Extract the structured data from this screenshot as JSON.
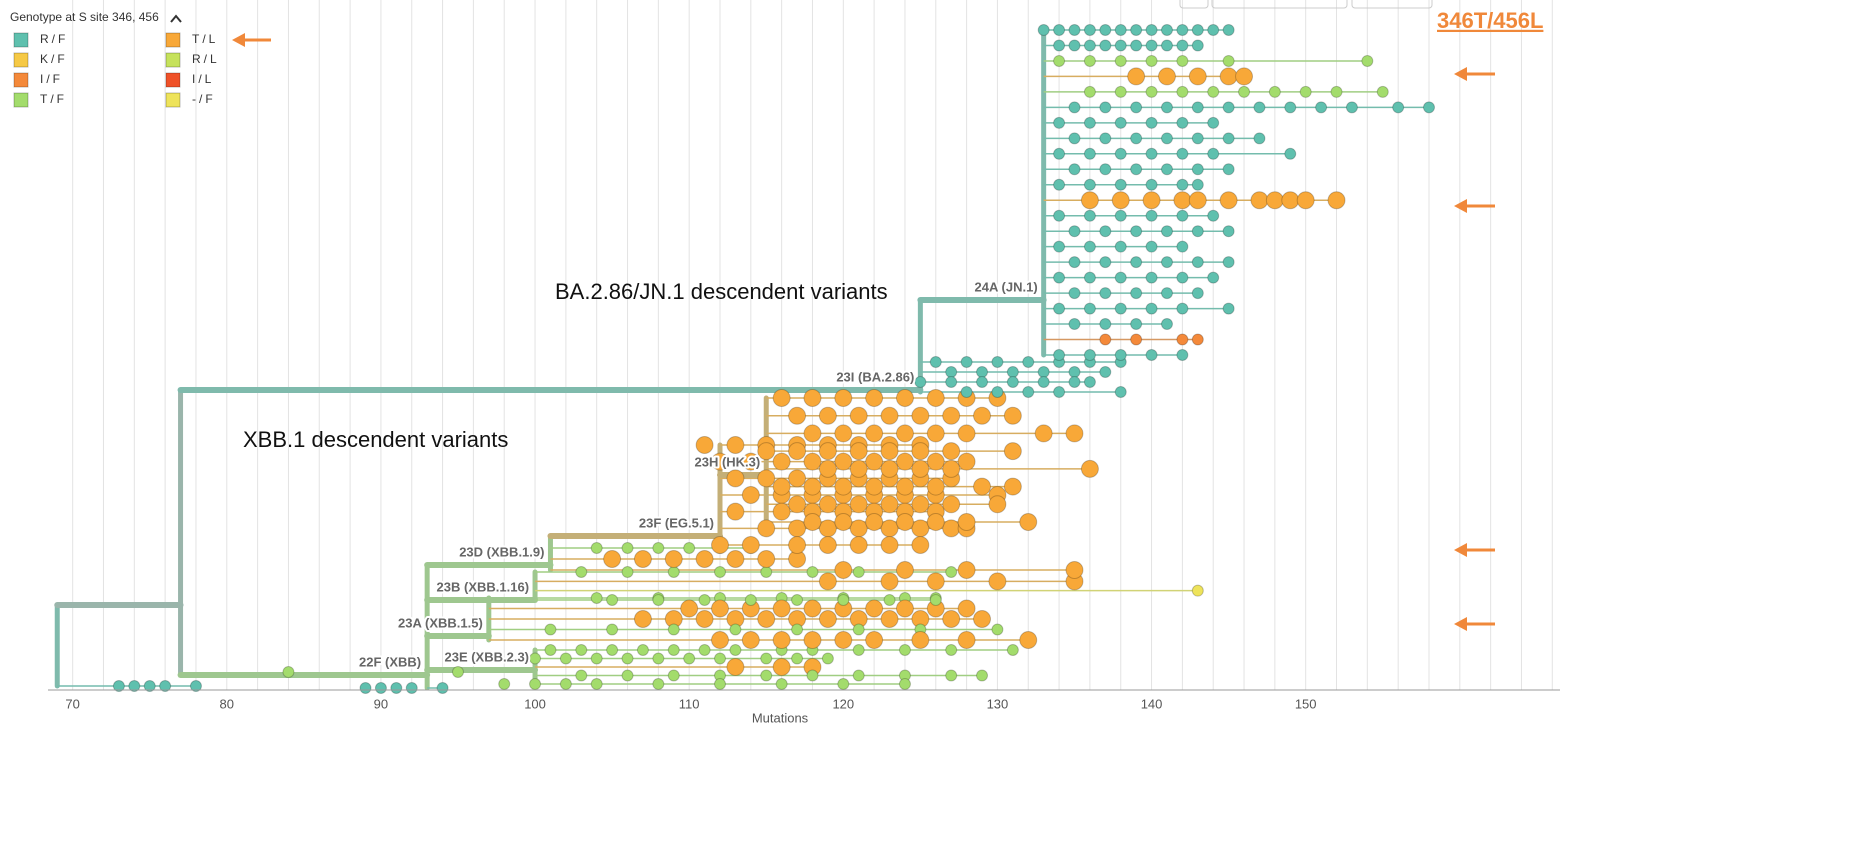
{
  "chart_data": {
    "type": "tree",
    "legend_title": "Genotype at S site 346, 456",
    "series": [
      {
        "name": "R/F",
        "color": "#5fc0ae",
        "marker_size": 5.5
      },
      {
        "name": "K/F",
        "color": "#f6c945",
        "marker_size": 5.5
      },
      {
        "name": "I/F",
        "color": "#f4893a",
        "marker_size": 5.5
      },
      {
        "name": "T/F",
        "color": "#a3dc6c",
        "marker_size": 5.5
      },
      {
        "name": "T/L",
        "color": "#f8a838",
        "marker_size": 8.5
      },
      {
        "name": "R/L",
        "color": "#c6e25b",
        "marker_size": 5.5
      },
      {
        "name": "I/L",
        "color": "#ef5128",
        "marker_size": 5.5
      },
      {
        "name": "-/F",
        "color": "#eee35a",
        "marker_size": 5.5
      }
    ],
    "highlight": "346T/456L",
    "annotations": [
      "BA.2.86/JN.1 descendent variants",
      "XBB.1 descendent variants"
    ],
    "x_label": "Mutations",
    "xlim": [
      68.4,
      166.5
    ],
    "xticks": [
      70,
      80,
      90,
      100,
      110,
      120,
      130,
      140,
      150
    ],
    "xgrid": [
      70,
      72,
      74,
      76,
      78,
      80,
      82,
      84,
      86,
      88,
      90,
      92,
      94,
      96,
      98,
      100,
      102,
      104,
      106,
      108,
      110,
      112,
      114,
      116,
      118,
      120,
      122,
      124,
      126,
      128,
      130,
      132,
      134,
      136,
      138,
      140,
      142,
      144,
      146,
      148,
      150,
      152,
      154,
      156,
      158,
      160,
      162,
      164,
      166
    ],
    "clades": [
      {
        "x": 69,
        "rows": [
          {
            "genotype": "R/F",
            "x": [
              73,
              74,
              75,
              76,
              78
            ]
          }
        ]
      },
      {
        "x": 77,
        "parent": 0,
        "rows": []
      },
      {
        "label": "22F (XBB)",
        "x": 93,
        "parent": 1,
        "rows": [
          {
            "genotype": "T/F",
            "x": [
              84,
              95
            ]
          },
          {
            "genotype": "R/F",
            "x": [
              89,
              90,
              91,
              92,
              94
            ]
          }
        ]
      },
      {
        "label": "23E (XBB.2.3)",
        "x": 100,
        "parent": 2,
        "rows": [
          {
            "genotype": "T/F",
            "x": [
              101,
              103,
              105,
              107,
              109,
              111,
              113,
              116,
              118,
              121,
              124,
              127,
              131
            ]
          },
          {
            "genotype": "T/F",
            "x": [
              100,
              102,
              104,
              106,
              108,
              110,
              112,
              115,
              117,
              119
            ]
          },
          {
            "genotype": "T/L",
            "x": [
              113,
              116,
              118
            ]
          },
          {
            "genotype": "T/F",
            "x": [
              103,
              106,
              109,
              112,
              115,
              118,
              121,
              124,
              127,
              129
            ]
          },
          {
            "genotype": "T/F",
            "x": [
              98,
              100,
              102,
              104,
              108,
              112,
              116,
              120,
              124
            ]
          }
        ]
      },
      {
        "label": "23A (XBB.1.5)",
        "x": 97,
        "parent": 2,
        "rows": [
          {
            "genotype": "T/F",
            "x": [
              104,
              108,
              112,
              116,
              120,
              124,
              126
            ]
          },
          {
            "genotype": "T/L",
            "x": [
              110,
              112,
              114,
              116,
              118,
              120,
              122,
              124,
              126,
              128
            ]
          },
          {
            "genotype": "T/L",
            "x": [
              107,
              109,
              111,
              113,
              115,
              117,
              119,
              121,
              123,
              125,
              127,
              129
            ]
          },
          {
            "genotype": "T/F",
            "x": [
              101,
              105,
              109,
              113,
              117,
              121,
              125,
              130
            ]
          },
          {
            "genotype": "T/L",
            "x": [
              112,
              114,
              116,
              118,
              120,
              122,
              125,
              128,
              132
            ]
          }
        ]
      },
      {
        "label": "23B (XBB.1.16)",
        "x": 100,
        "parent": 2,
        "rows": [
          {
            "genotype": "T/F",
            "x": [
              103,
              106,
              109,
              112,
              115,
              118,
              121,
              124,
              127
            ]
          },
          {
            "genotype": "T/L",
            "x": [
              119,
              123,
              126,
              130,
              135
            ]
          },
          {
            "genotype": "-/F",
            "x": [
              143
            ]
          },
          {
            "genotype": "T/F",
            "x": [
              105,
              108,
              111,
              114,
              117,
              120,
              123,
              126
            ]
          }
        ]
      },
      {
        "label": "23D (XBB.1.9)",
        "x": 101,
        "parent": 2,
        "rows": [
          {
            "genotype": "T/F",
            "x": [
              104,
              106,
              108,
              110,
              112,
              114
            ]
          },
          {
            "genotype": "T/L",
            "x": [
              105,
              107,
              109,
              111,
              113,
              115,
              117
            ]
          },
          {
            "genotype": "T/L",
            "x": [
              120,
              124,
              128,
              135
            ]
          }
        ]
      },
      {
        "label": "23F (EG.5.1)",
        "x": 112,
        "parent": 6,
        "rows": [
          {
            "genotype": "T/L",
            "x": [
              111,
              113,
              115,
              117,
              119,
              121,
              123,
              125
            ]
          },
          {
            "genotype": "T/L",
            "x": [
              112,
              114,
              116,
              118,
              120,
              122,
              124,
              126,
              128
            ]
          },
          {
            "genotype": "T/L",
            "x": [
              113,
              115,
              117,
              119,
              121,
              123,
              125,
              127
            ]
          },
          {
            "genotype": "T/L",
            "x": [
              114,
              116,
              118,
              120,
              122,
              124,
              126,
              130
            ]
          },
          {
            "genotype": "T/L",
            "x": [
              113,
              116,
              118,
              120,
              122,
              124,
              126
            ]
          },
          {
            "genotype": "T/L",
            "x": [
              115,
              117,
              119,
              121,
              123,
              125,
              127,
              128
            ]
          },
          {
            "genotype": "T/L",
            "x": [
              112,
              114,
              117,
              119,
              121,
              123,
              125
            ]
          }
        ]
      },
      {
        "label": "23H (HK.3)",
        "x": 115,
        "parent": 7,
        "rows": [
          {
            "genotype": "T/L",
            "x": [
              116,
              118,
              120,
              122,
              124,
              126,
              128,
              130
            ]
          },
          {
            "genotype": "T/L",
            "x": [
              117,
              119,
              121,
              123,
              125,
              127,
              129,
              131
            ]
          },
          {
            "genotype": "T/L",
            "x": [
              118,
              120,
              122,
              124,
              126,
              128,
              133,
              135
            ]
          },
          {
            "genotype": "T/L",
            "x": [
              115,
              117,
              119,
              121,
              123,
              125,
              127,
              131
            ]
          },
          {
            "genotype": "T/L",
            "x": [
              119,
              121,
              123,
              125,
              127,
              136
            ]
          },
          {
            "genotype": "T/L",
            "x": [
              116,
              118,
              120,
              122,
              124,
              126,
              129,
              131
            ]
          },
          {
            "genotype": "T/L",
            "x": [
              117,
              119,
              121,
              123,
              125,
              127,
              130
            ]
          },
          {
            "genotype": "T/L",
            "x": [
              118,
              120,
              122,
              124,
              126,
              128,
              132
            ]
          }
        ]
      },
      {
        "label": "23I (BA.2.86)",
        "x": 125,
        "parent": 1,
        "rows": [
          {
            "genotype": "R/F",
            "x": [
              126,
              128,
              130,
              132,
              134,
              136,
              138
            ]
          },
          {
            "genotype": "R/F",
            "x": [
              127,
              129,
              131,
              133,
              135,
              137
            ]
          },
          {
            "genotype": "R/F",
            "x": [
              125,
              127,
              129,
              131,
              133,
              135,
              136
            ]
          },
          {
            "genotype": "R/F",
            "x": [
              128,
              130,
              132,
              134,
              138
            ]
          }
        ]
      },
      {
        "label": "24A (JN.1)",
        "x": 133,
        "parent": 9,
        "rows": [
          {
            "genotype": "R/F",
            "x": [
              133,
              134,
              135,
              136,
              137,
              138,
              139,
              140,
              141,
              142,
              143,
              144,
              145
            ]
          },
          {
            "genotype": "R/F",
            "x": [
              134,
              135,
              136,
              137,
              138,
              139,
              140,
              141,
              142,
              143
            ]
          },
          {
            "genotype": "T/F",
            "x": [
              134,
              136,
              138,
              140,
              142,
              145,
              154
            ]
          },
          {
            "genotype": "T/L",
            "x": [
              139,
              141,
              143,
              145,
              146
            ]
          },
          {
            "genotype": "T/F",
            "x": [
              136,
              138,
              140,
              142,
              144,
              146,
              148,
              150,
              152,
              155
            ]
          },
          {
            "genotype": "R/F",
            "x": [
              135,
              137,
              139,
              141,
              143,
              145,
              147,
              149,
              151,
              153,
              156,
              158
            ]
          },
          {
            "genotype": "R/F",
            "x": [
              134,
              136,
              138,
              140,
              142,
              144
            ]
          },
          {
            "genotype": "R/F",
            "x": [
              135,
              137,
              139,
              141,
              143,
              145,
              147
            ]
          },
          {
            "genotype": "R/F",
            "x": [
              134,
              136,
              138,
              140,
              142,
              144,
              149
            ]
          },
          {
            "genotype": "R/F",
            "x": [
              135,
              137,
              139,
              141,
              143,
              145
            ]
          },
          {
            "genotype": "R/F",
            "x": [
              134,
              136,
              138,
              140,
              142,
              143
            ]
          },
          {
            "genotype": "T/L",
            "x": [
              136,
              138,
              140,
              142,
              143,
              145,
              147,
              148,
              149,
              150,
              152
            ]
          },
          {
            "genotype": "R/F",
            "x": [
              134,
              136,
              138,
              140,
              142,
              144
            ]
          },
          {
            "genotype": "R/F",
            "x": [
              135,
              137,
              139,
              141,
              143,
              145
            ]
          },
          {
            "genotype": "R/F",
            "x": [
              134,
              136,
              138,
              140,
              142
            ]
          },
          {
            "genotype": "R/F",
            "x": [
              135,
              137,
              139,
              141,
              143,
              145
            ]
          },
          {
            "genotype": "R/F",
            "x": [
              134,
              136,
              138,
              140,
              142,
              144
            ]
          },
          {
            "genotype": "R/F",
            "x": [
              135,
              137,
              139,
              141,
              143
            ]
          },
          {
            "genotype": "R/F",
            "x": [
              134,
              136,
              138,
              140,
              142,
              145
            ]
          },
          {
            "genotype": "R/F",
            "x": [
              135,
              137,
              139,
              141
            ]
          },
          {
            "genotype": "I/F",
            "x": [
              137,
              139,
              142,
              143
            ]
          },
          {
            "genotype": "R/F",
            "x": [
              134,
              136,
              138,
              140,
              142
            ]
          }
        ]
      }
    ]
  }
}
